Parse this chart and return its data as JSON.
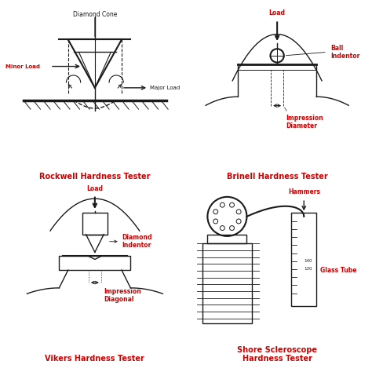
{
  "bg_color": "#ffffff",
  "line_color": "#1a1a1a",
  "red_color": "#cc0000",
  "panels": [
    {
      "title": "Rockwell Hardness Tester"
    },
    {
      "title": "Brinell Hardness Tester"
    },
    {
      "title": "Vikers Hardness Tester"
    },
    {
      "title": "Shore Scleroscope\nHardness Tester"
    }
  ]
}
